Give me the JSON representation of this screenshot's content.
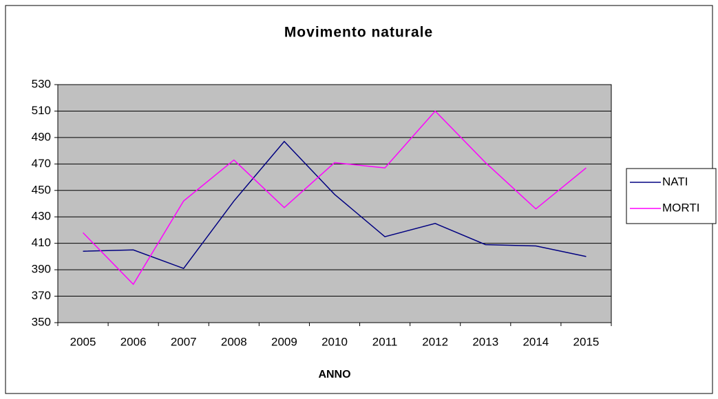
{
  "chart_data": {
    "type": "line",
    "title": "Movimento naturale",
    "x_label": "ANNO",
    "categories": [
      "2005",
      "2006",
      "2007",
      "2008",
      "2009",
      "2010",
      "2011",
      "2012",
      "2013",
      "2014",
      "2015"
    ],
    "series": [
      {
        "name": "NATI",
        "color": "#000080",
        "values": [
          404,
          405,
          391,
          442,
          487,
          447,
          415,
          425,
          409,
          408,
          400
        ]
      },
      {
        "name": "MORTI",
        "color": "#ff00ff",
        "values": [
          418,
          379,
          442,
          473,
          437,
          471,
          467,
          510,
          471,
          436,
          467
        ]
      }
    ],
    "ylim": [
      350,
      530
    ],
    "yticks": [
      350,
      370,
      390,
      410,
      430,
      450,
      470,
      490,
      510,
      530
    ],
    "grid": true,
    "legend": "right",
    "plot_background": "#c0c0c0"
  }
}
